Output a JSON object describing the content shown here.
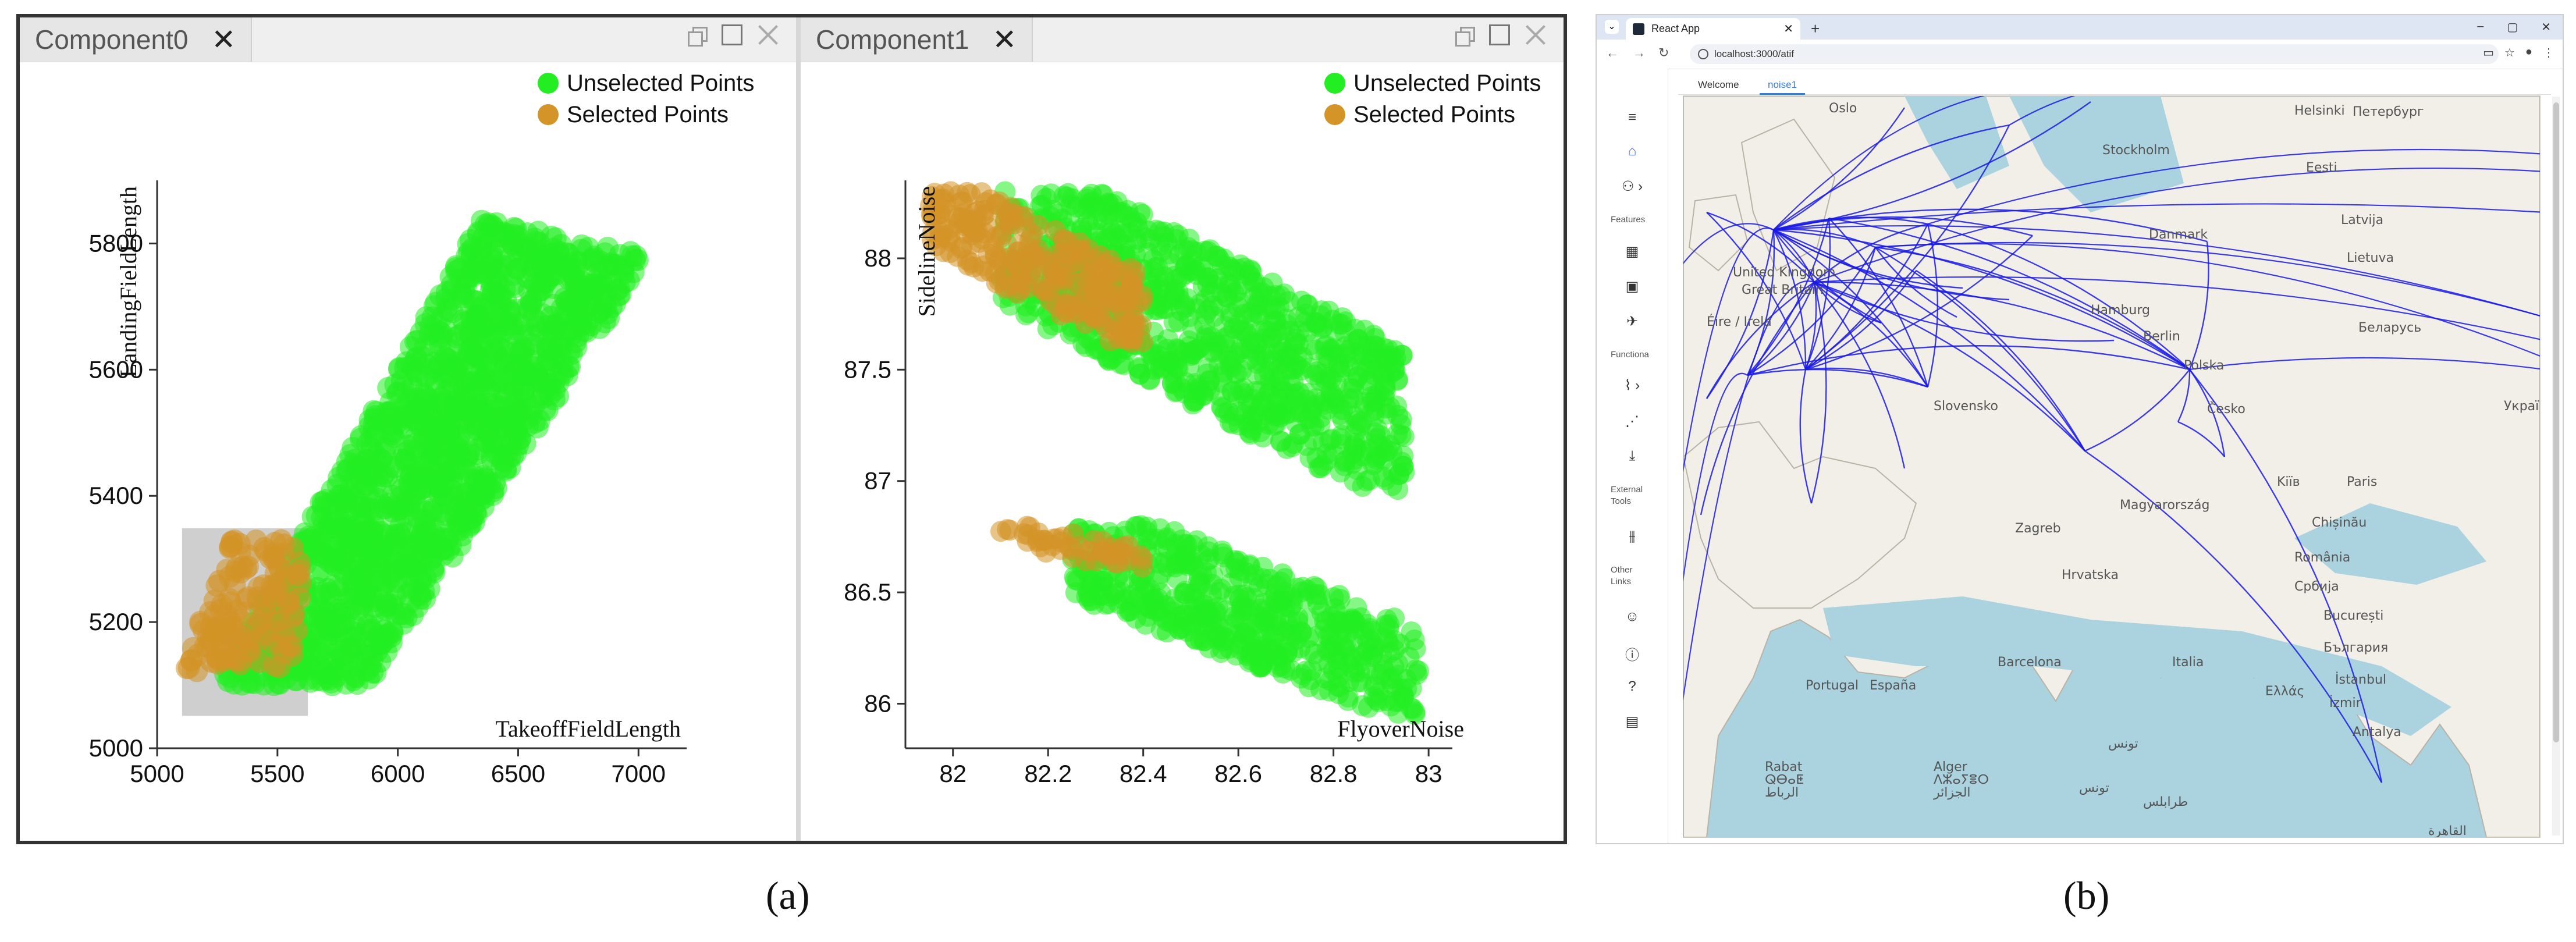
{
  "figure_a": {
    "panels": [
      {
        "tab_label": "Component0",
        "legend": [
          {
            "label": "Unselected Points",
            "color": "#22ee22"
          },
          {
            "label": "Selected Points",
            "color": "#d49427"
          }
        ],
        "chart_data": {
          "type": "scatter",
          "xlabel": "TakeoffFieldLength",
          "ylabel": "LandingFieldLength",
          "xlim": [
            5000,
            7200
          ],
          "ylim": [
            5000,
            5900
          ],
          "x_ticks": [
            "5000",
            "5500",
            "6000",
            "6500",
            "7000"
          ],
          "y_ticks": [
            "5000",
            "5200",
            "5400",
            "5600",
            "5800"
          ],
          "selection_box": {
            "x": [
              5100,
              5630
            ],
            "y": [
              5050,
              5350
            ]
          },
          "series": [
            {
              "name": "Unselected Points",
              "color": "#22ee22",
              "shape": "parallelogram band",
              "corners": [
                [
                  5250,
                  5100
                ],
                [
                  5880,
                  5100
                ],
                [
                  7050,
                  5780
                ],
                [
                  6350,
                  5840
                ]
              ]
            },
            {
              "name": "Selected Points",
              "color": "#d49427",
              "shape": "cluster",
              "corners": [
                [
                  5100,
                  5120
                ],
                [
                  5600,
                  5120
                ],
                [
                  5600,
                  5330
                ],
                [
                  5300,
                  5330
                ]
              ]
            }
          ]
        }
      },
      {
        "tab_label": "Component1",
        "legend": [
          {
            "label": "Unselected Points",
            "color": "#22ee22"
          },
          {
            "label": "Selected Points",
            "color": "#d49427"
          }
        ],
        "chart_data": {
          "type": "scatter",
          "xlabel": "FlyoverNoise",
          "ylabel": "SidelineNoise",
          "xlim": [
            81.9,
            83.05
          ],
          "ylim": [
            85.8,
            88.35
          ],
          "x_ticks": [
            "82",
            "82.2",
            "82.4",
            "82.6",
            "82.8",
            "83"
          ],
          "y_ticks": [
            "86",
            "86.5",
            "87",
            "87.5",
            "88"
          ],
          "series": [
            {
              "name": "Unselected Points",
              "color": "#22ee22",
              "clusters": [
                {
                  "x_range": [
                    82.1,
                    82.95
                  ],
                  "y_range": [
                    86.95,
                    88.3
                  ],
                  "trend": "decreasing"
                },
                {
                  "x_range": [
                    82.25,
                    82.98
                  ],
                  "y_range": [
                    85.95,
                    86.8
                  ],
                  "trend": "decreasing"
                }
              ]
            },
            {
              "name": "Selected Points",
              "color": "#d49427",
              "clusters": [
                {
                  "x_range": [
                    81.95,
                    82.4
                  ],
                  "y_range": [
                    87.6,
                    88.3
                  ],
                  "trend": "decreasing"
                },
                {
                  "x_range": [
                    82.1,
                    82.4
                  ],
                  "y_range": [
                    86.6,
                    86.8
                  ],
                  "trend": "decreasing"
                }
              ]
            }
          ]
        }
      }
    ],
    "caption": "(a)"
  },
  "figure_b": {
    "browser": {
      "tab_title": "React App",
      "url": "localhost:3000/atif",
      "new_tab": "+",
      "win_controls": [
        "–",
        "▢",
        "✕"
      ]
    },
    "sidebar": {
      "section_features": "Features",
      "section_functions": "Functiona",
      "section_external": "External Tools",
      "section_other": "Other Links"
    },
    "app_tabs": [
      "Welcome",
      "noise1"
    ],
    "map_labels": [
      {
        "text": "Oslo"
      },
      {
        "text": "Helsinki"
      },
      {
        "text": "Петербург"
      },
      {
        "text": "Stockholm"
      },
      {
        "text": "Eesti"
      },
      {
        "text": "Latvija"
      },
      {
        "text": "Danmark"
      },
      {
        "text": "Lietuva"
      },
      {
        "text": "United Kingdom"
      },
      {
        "text": "Great Britain"
      },
      {
        "text": "Hamburg"
      },
      {
        "text": "Беларусь"
      },
      {
        "text": "Éire / Irela"
      },
      {
        "text": "Berlin"
      },
      {
        "text": "Polska"
      },
      {
        "text": "Česko"
      },
      {
        "text": "Kiïв"
      },
      {
        "text": "Paris"
      },
      {
        "text": "Slovensko"
      },
      {
        "text": "Україна"
      },
      {
        "text": "Magyarország"
      },
      {
        "text": "Chișinău"
      },
      {
        "text": "Zagreb"
      },
      {
        "text": "România"
      },
      {
        "text": "Hrvatska"
      },
      {
        "text": "Србија"
      },
      {
        "text": "București"
      },
      {
        "text": "България"
      },
      {
        "text": "Barcelona"
      },
      {
        "text": "Italia"
      },
      {
        "text": "İstanbul"
      },
      {
        "text": "Portugal"
      },
      {
        "text": "España"
      },
      {
        "text": "Ελλάς"
      },
      {
        "text": "İzmir"
      },
      {
        "text": "Antalya"
      },
      {
        "text": "تونس"
      },
      {
        "text": "Rabat"
      },
      {
        "text": "ⵕⴱⴰⵟ"
      },
      {
        "text": "الرباط"
      },
      {
        "text": "Alger"
      },
      {
        "text": "ⴷⵣⴰⵢⴻⵔ"
      },
      {
        "text": "الجزائر"
      },
      {
        "text": "تونس"
      },
      {
        "text": "طرابلس"
      },
      {
        "text": "القاهرة"
      }
    ],
    "caption": "(b)"
  }
}
